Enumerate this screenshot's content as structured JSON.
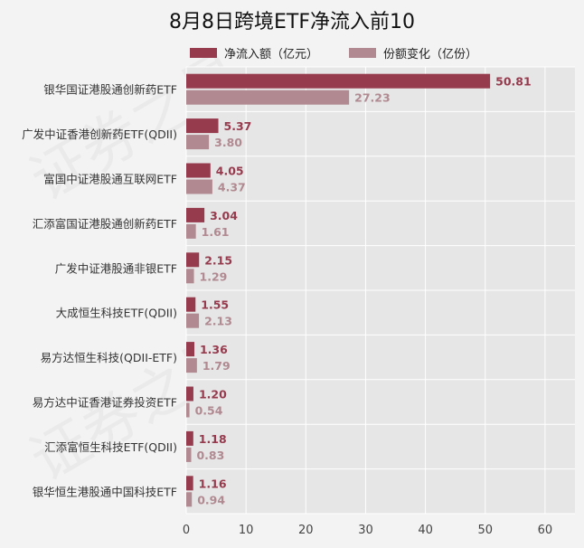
{
  "chart_data": {
    "type": "bar",
    "orientation": "horizontal",
    "title": "8月8日跨境ETF净流入前10",
    "categories": [
      "银华国证港股通创新药ETF",
      "广发中证香港创新药ETF(QDII)",
      "富国中证港股通互联网ETF",
      "汇添富国证港股通创新药ETF",
      "广发中证港股通非银ETF",
      "大成恒生科技ETF(QDII)",
      "易方达恒生科技(QDII-ETF)",
      "易方达中证香港证券投资ETF",
      "汇添富恒生科技ETF(QDII)",
      "银华恒生港股通中国科技ETF"
    ],
    "series": [
      {
        "name": "净流入额（亿元）",
        "color": "#963a4d",
        "values": [
          50.81,
          5.37,
          4.05,
          3.04,
          2.15,
          1.55,
          1.36,
          1.2,
          1.18,
          1.16
        ],
        "labels": [
          "50.81",
          "5.37",
          "4.05",
          "3.04",
          "2.15",
          "1.55",
          "1.36",
          "1.20",
          "1.18",
          "1.16"
        ]
      },
      {
        "name": "份额变化（亿份）",
        "color": "#b08991",
        "values": [
          27.23,
          3.8,
          4.37,
          1.61,
          1.29,
          2.13,
          1.79,
          0.54,
          0.83,
          0.94
        ],
        "labels": [
          "27.23",
          "3.80",
          "4.37",
          "1.61",
          "1.29",
          "2.13",
          "1.79",
          "0.54",
          "0.83",
          "0.94"
        ]
      }
    ],
    "xlim": [
      0,
      65
    ],
    "xticks": [
      "0",
      "10",
      "20",
      "30",
      "40",
      "50",
      "60"
    ],
    "grid": true,
    "legend_position": "top",
    "background": "#e6e6e6"
  },
  "watermark_text": "证券之星"
}
